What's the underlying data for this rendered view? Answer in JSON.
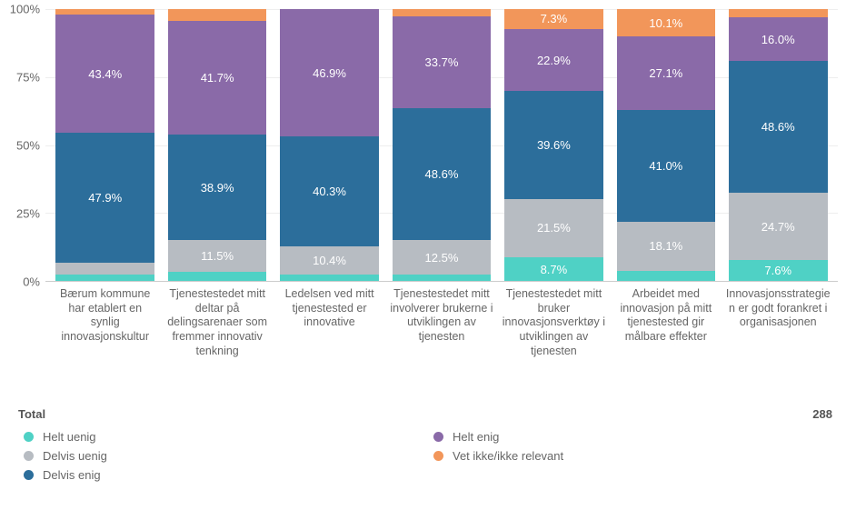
{
  "chart": {
    "type": "stacked-bar-100",
    "background_color": "#ffffff",
    "grid_color": "#eeeeee",
    "axis_color": "#cccccc",
    "text_color": "#666666",
    "font_family": "Arial",
    "label_fontsize": 13,
    "xlabel_fontsize": 12.5,
    "bar_width": 0.88,
    "value_label_fontsize": 13,
    "value_label_color": "#ffffff",
    "value_label_threshold_pct": 7,
    "ylim": [
      0,
      100
    ],
    "yticks": [
      0,
      25,
      50,
      75,
      100
    ],
    "ytick_labels": [
      "0%",
      "25%",
      "50%",
      "75%",
      "100%"
    ],
    "series": [
      {
        "key": "helt_uenig",
        "label": "Helt uenig",
        "color": "#4fd1c5"
      },
      {
        "key": "delvis_uenig",
        "label": "Delvis uenig",
        "color": "#b7bcc2"
      },
      {
        "key": "delvis_enig",
        "label": "Delvis enig",
        "color": "#2c6e9b"
      },
      {
        "key": "helt_enig",
        "label": "Helt enig",
        "color": "#8a6aa8"
      },
      {
        "key": "vet_ikke",
        "label": "Vet ikke/ikke relevant",
        "color": "#f2965a"
      }
    ],
    "categories": [
      "Bærum kommune har etablert en synlig innovasjonskultur",
      "Tjenestestedet mitt deltar på delingsarenaer som fremmer innovativ tenkning",
      "Ledelsen ved mitt tjenestested er innovative",
      "Tjenestestedet mitt involverer brukerne i utviklingen av tjenesten",
      "Tjenestestedet mitt bruker innovasjonsverktøy i utviklingen av tjenesten",
      "Arbeidet med innovasjon på mitt tjenestested gir målbare effekter",
      "Innovasjonsstrategien er godt forankret i organisasjonen"
    ],
    "data": [
      {
        "helt_uenig": 2.4,
        "delvis_uenig": 4.2,
        "delvis_enig": 47.9,
        "helt_enig": 43.4,
        "vet_ikke": 2.1
      },
      {
        "helt_uenig": 3.5,
        "delvis_uenig": 11.5,
        "delvis_enig": 38.9,
        "helt_enig": 41.7,
        "vet_ikke": 4.4
      },
      {
        "helt_uenig": 2.4,
        "delvis_uenig": 10.4,
        "delvis_enig": 40.3,
        "helt_enig": 46.9,
        "vet_ikke": 0.0
      },
      {
        "helt_uenig": 2.4,
        "delvis_uenig": 12.5,
        "delvis_enig": 48.6,
        "helt_enig": 33.7,
        "vet_ikke": 2.8
      },
      {
        "helt_uenig": 8.7,
        "delvis_uenig": 21.5,
        "delvis_enig": 39.6,
        "helt_enig": 22.9,
        "vet_ikke": 7.3
      },
      {
        "helt_uenig": 3.7,
        "delvis_uenig": 18.1,
        "delvis_enig": 41.0,
        "helt_enig": 27.1,
        "vet_ikke": 10.1
      },
      {
        "helt_uenig": 7.6,
        "delvis_uenig": 24.7,
        "delvis_enig": 48.6,
        "helt_enig": 16.0,
        "vet_ikke": 3.1
      }
    ]
  },
  "footer": {
    "total_label": "Total",
    "total_value": "288"
  },
  "legend_layout": {
    "left": [
      "helt_uenig",
      "delvis_uenig",
      "delvis_enig"
    ],
    "right": [
      "helt_enig",
      "vet_ikke"
    ]
  }
}
